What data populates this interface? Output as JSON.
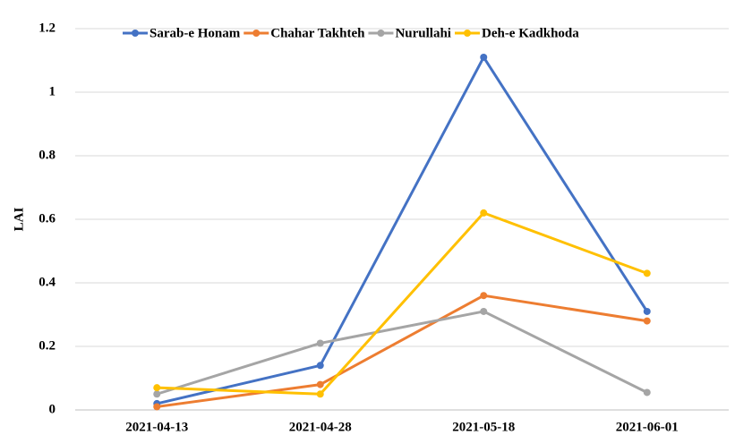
{
  "chart_data": {
    "type": "line",
    "y_label": "LAI",
    "categories": [
      "2021-04-13",
      "2021-04-28",
      "2021-05-18",
      "2021-06-01"
    ],
    "series": [
      {
        "name": "Sarab-e Honam",
        "color": "#4472c4",
        "values": [
          0.02,
          0.14,
          1.11,
          0.31
        ]
      },
      {
        "name": "Chahar Takhteh",
        "color": "#ed7d31",
        "values": [
          0.01,
          0.08,
          0.36,
          0.28
        ]
      },
      {
        "name": "Nurullahi",
        "color": "#a5a5a5",
        "values": [
          0.05,
          0.21,
          0.31,
          0.055
        ]
      },
      {
        "name": "Deh-e Kadkhoda",
        "color": "#ffc000",
        "values": [
          0.07,
          0.05,
          0.62,
          0.43
        ]
      }
    ],
    "ylim": [
      0,
      1.2
    ],
    "yticks": [
      0,
      0.2,
      0.4,
      0.6,
      0.8,
      1,
      1.2
    ],
    "grid": true,
    "legend": "top"
  }
}
